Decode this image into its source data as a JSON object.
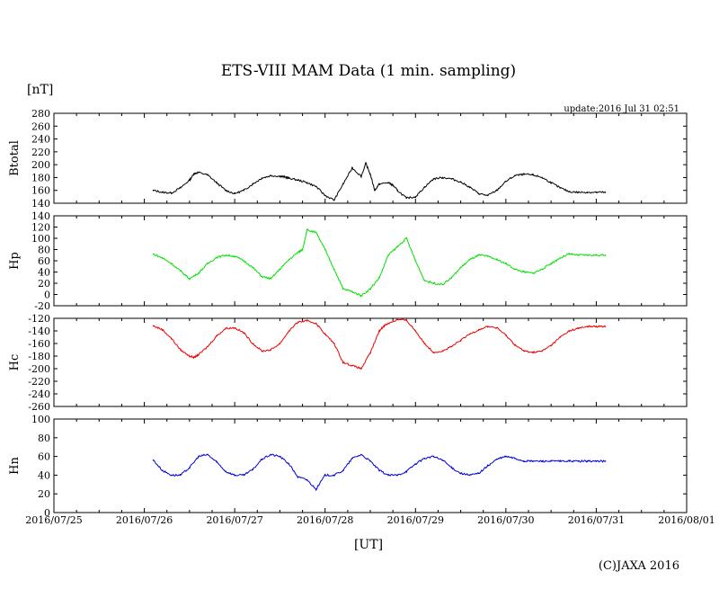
{
  "chart_data": {
    "type": "line",
    "title": "ETS-VIII MAM Data (1 min. sampling)",
    "unit_label": "[nT]",
    "update_text": "update:2016 Jul 31 02:51",
    "xlabel": "[UT]",
    "copyright": "(C)JAXA 2016",
    "x_ticks": [
      "2016/07/25",
      "2016/07/26",
      "2016/07/27",
      "2016/07/28",
      "2016/07/29",
      "2016/07/30",
      "2016/07/31",
      "2016/08/01"
    ],
    "xlim_days": [
      0,
      7
    ],
    "panels": [
      {
        "name": "Btotal",
        "color": "#000000",
        "ylim": [
          140,
          280
        ],
        "y_ticks": [
          "280",
          "260",
          "240",
          "220",
          "200",
          "180",
          "160",
          "140"
        ],
        "series_x_days": [
          1.1,
          1.2,
          1.3,
          1.4,
          1.5,
          1.55,
          1.6,
          1.7,
          1.8,
          1.9,
          2.0,
          2.1,
          2.2,
          2.3,
          2.4,
          2.5,
          2.55,
          2.6,
          2.7,
          2.8,
          2.9,
          3.0,
          3.1,
          3.2,
          3.3,
          3.4,
          3.45,
          3.5,
          3.55,
          3.6,
          3.7,
          3.75,
          3.8,
          3.9,
          4.0,
          4.1,
          4.2,
          4.3,
          4.4,
          4.5,
          4.6,
          4.7,
          4.8,
          4.9,
          5.0,
          5.1,
          5.2,
          5.3,
          5.4,
          5.5,
          5.6,
          5.7,
          5.8,
          5.9,
          6.0,
          6.1
        ],
        "values": [
          160,
          157,
          156,
          164,
          176,
          186,
          188,
          184,
          172,
          160,
          155,
          160,
          170,
          179,
          183,
          182,
          181,
          179,
          176,
          172,
          166,
          152,
          145,
          170,
          195,
          182,
          202,
          185,
          160,
          170,
          172,
          168,
          160,
          148,
          150,
          165,
          178,
          180,
          178,
          173,
          165,
          155,
          152,
          160,
          174,
          183,
          185,
          184,
          180,
          172,
          164,
          158,
          157,
          157,
          157,
          157
        ]
      },
      {
        "name": "Hp",
        "color": "#00e000",
        "ylim": [
          -20,
          140
        ],
        "y_ticks": [
          "140",
          "120",
          "100",
          "80",
          "60",
          "40",
          "20",
          "0",
          "-20"
        ],
        "series_x_days": [
          1.1,
          1.2,
          1.3,
          1.4,
          1.5,
          1.6,
          1.7,
          1.8,
          1.9,
          2.0,
          2.1,
          2.2,
          2.3,
          2.4,
          2.5,
          2.6,
          2.7,
          2.75,
          2.8,
          2.9,
          3.0,
          3.1,
          3.2,
          3.3,
          3.4,
          3.5,
          3.6,
          3.7,
          3.8,
          3.9,
          4.0,
          4.1,
          4.2,
          4.3,
          4.4,
          4.5,
          4.6,
          4.7,
          4.8,
          4.9,
          5.0,
          5.1,
          5.2,
          5.3,
          5.4,
          5.5,
          5.6,
          5.7,
          5.8,
          5.9,
          6.0,
          6.1
        ],
        "values": [
          72,
          65,
          55,
          42,
          28,
          38,
          55,
          66,
          70,
          68,
          60,
          48,
          32,
          28,
          45,
          62,
          75,
          80,
          115,
          110,
          80,
          45,
          10,
          5,
          -2,
          10,
          30,
          70,
          85,
          100,
          60,
          25,
          20,
          18,
          30,
          48,
          62,
          70,
          68,
          62,
          55,
          45,
          40,
          38,
          45,
          55,
          65,
          72,
          70,
          70,
          70,
          70
        ]
      },
      {
        "name": "Hc",
        "color": "#ee0000",
        "ylim": [
          -260,
          -120
        ],
        "y_ticks": [
          "-120",
          "-140",
          "-160",
          "-180",
          "-200",
          "-220",
          "-240",
          "-260"
        ],
        "series_x_days": [
          1.1,
          1.2,
          1.3,
          1.4,
          1.5,
          1.55,
          1.6,
          1.7,
          1.8,
          1.9,
          2.0,
          2.1,
          2.2,
          2.3,
          2.4,
          2.5,
          2.6,
          2.7,
          2.8,
          2.9,
          3.0,
          3.1,
          3.2,
          3.3,
          3.4,
          3.5,
          3.6,
          3.65,
          3.7,
          3.8,
          3.9,
          4.0,
          4.1,
          4.2,
          4.3,
          4.4,
          4.5,
          4.6,
          4.7,
          4.8,
          4.9,
          5.0,
          5.1,
          5.2,
          5.3,
          5.4,
          5.5,
          5.6,
          5.7,
          5.8,
          5.9,
          6.0,
          6.1
        ],
        "values": [
          -132,
          -138,
          -152,
          -170,
          -180,
          -182,
          -178,
          -165,
          -148,
          -136,
          -135,
          -143,
          -160,
          -172,
          -170,
          -160,
          -140,
          -126,
          -124,
          -128,
          -145,
          -160,
          -190,
          -195,
          -200,
          -175,
          -140,
          -132,
          -128,
          -122,
          -123,
          -140,
          -160,
          -174,
          -172,
          -165,
          -155,
          -145,
          -138,
          -133,
          -135,
          -147,
          -162,
          -172,
          -174,
          -172,
          -163,
          -150,
          -140,
          -136,
          -133,
          -133,
          -133
        ]
      },
      {
        "name": "Hn",
        "color": "#0000dd",
        "ylim": [
          0,
          100
        ],
        "y_ticks": [
          "100",
          "80",
          "60",
          "40",
          "20",
          "0"
        ],
        "series_x_days": [
          1.1,
          1.2,
          1.3,
          1.4,
          1.5,
          1.6,
          1.7,
          1.8,
          1.9,
          2.0,
          2.1,
          2.2,
          2.3,
          2.4,
          2.5,
          2.6,
          2.7,
          2.8,
          2.9,
          3.0,
          3.1,
          3.2,
          3.3,
          3.4,
          3.5,
          3.6,
          3.7,
          3.8,
          3.9,
          4.0,
          4.1,
          4.2,
          4.3,
          4.4,
          4.5,
          4.6,
          4.7,
          4.8,
          4.9,
          5.0,
          5.1,
          5.2,
          5.3,
          5.4,
          5.5,
          5.6,
          5.7,
          5.8,
          5.9,
          6.0,
          6.1
        ],
        "values": [
          56,
          45,
          40,
          40,
          48,
          60,
          62,
          54,
          44,
          40,
          40,
          46,
          57,
          62,
          60,
          52,
          38,
          35,
          25,
          40,
          40,
          45,
          58,
          62,
          55,
          45,
          40,
          40,
          44,
          52,
          58,
          60,
          56,
          48,
          42,
          40,
          42,
          50,
          57,
          60,
          58,
          55,
          55,
          55,
          55,
          55,
          55,
          55,
          55,
          55,
          55
        ]
      }
    ]
  }
}
